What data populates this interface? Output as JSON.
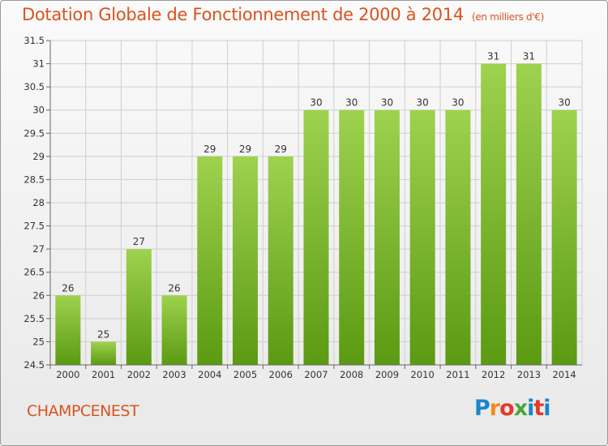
{
  "header": {
    "title": "Dotation Globale de Fonctionnement de 2000 à 2014",
    "subtitle": "(en milliers d'€)"
  },
  "footer": {
    "town": "CHAMPCENEST",
    "logo_letters": [
      "P",
      "r",
      "o",
      "x",
      "i",
      "t",
      "i"
    ],
    "logo_colors": [
      "#1a86c8",
      "#f08c1e",
      "#e23a2b",
      "#49a838",
      "#1a86c8",
      "#e23a2b",
      "#1a86c8"
    ]
  },
  "colors": {
    "bar_top": "#9ed24f",
    "bar_bottom": "#5b9a12",
    "grid": "#cfcfcf",
    "title": "#d9531e"
  },
  "chart_data": {
    "type": "bar",
    "title": "Dotation Globale de Fonctionnement de 2000 à 2014",
    "subtitle": "(en milliers d'€)",
    "xlabel": "",
    "ylabel": "",
    "categories": [
      "2000",
      "2001",
      "2002",
      "2003",
      "2004",
      "2005",
      "2006",
      "2007",
      "2008",
      "2009",
      "2010",
      "2011",
      "2012",
      "2013",
      "2014"
    ],
    "values": [
      26,
      25,
      27,
      26,
      29,
      29,
      29,
      30,
      30,
      30,
      30,
      30,
      31,
      31,
      30
    ],
    "ylim": [
      24.5,
      31.5
    ],
    "yticks": [
      24.5,
      25,
      25.5,
      26,
      26.5,
      27,
      27.5,
      28,
      28.5,
      29,
      29.5,
      30,
      30.5,
      31,
      31.5
    ],
    "grid": true,
    "legend": "none"
  }
}
